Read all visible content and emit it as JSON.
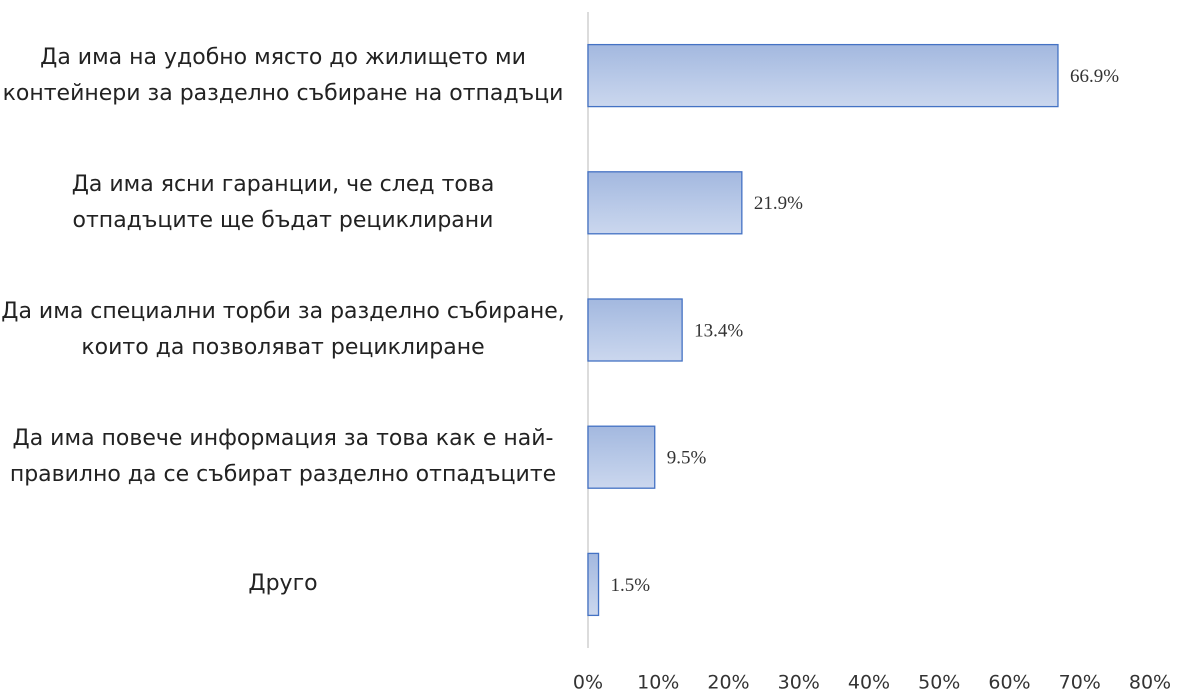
{
  "chart_data": {
    "type": "barh",
    "categories": [
      "Да има на удобно място до жилището ми контейнери за разделно събиране на отпадъци",
      "Да има ясни гаранции, че след това отпадъците ще бъдат рециклирани",
      "Да има специални торби за разделно събиране, които да позволяват рециклиране",
      "Да има повече информация за това как е най-правилно да се събират разделно отпадъците",
      "Друго"
    ],
    "values": [
      66.9,
      21.9,
      13.4,
      9.5,
      1.5
    ],
    "value_labels": [
      "66.9%",
      "21.9%",
      "13.4%",
      "9.5%",
      "1.5%"
    ],
    "color": "#4472c4",
    "xlim": [
      0,
      80
    ],
    "xticks": [
      {
        "value": 0,
        "label": "0%"
      },
      {
        "value": 10,
        "label": "10%"
      },
      {
        "value": 20,
        "label": "20%"
      },
      {
        "value": 30,
        "label": "30%"
      },
      {
        "value": 40,
        "label": "40%"
      },
      {
        "value": 50,
        "label": "50%"
      },
      {
        "value": 60,
        "label": "60%"
      },
      {
        "value": 70,
        "label": "70%"
      },
      {
        "value": 80,
        "label": "80%"
      }
    ]
  }
}
